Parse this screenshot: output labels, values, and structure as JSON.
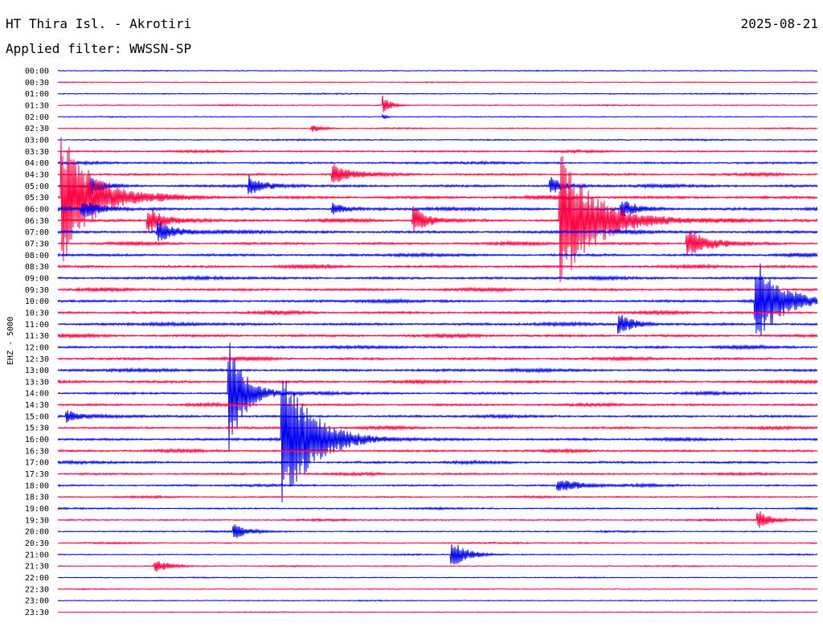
{
  "header": {
    "station": "HT Thira Isl. - Akrotiri",
    "date": "2025-08-21",
    "filter": "Applied filter: WWSSN-SP"
  },
  "chart_data": {
    "type": "line",
    "kind": "helicorder",
    "ylabel": "EHZ - 5000",
    "row_labels": [
      "00:00",
      "00:30",
      "01:00",
      "01:30",
      "02:00",
      "02:30",
      "03:00",
      "03:30",
      "04:00",
      "04:30",
      "05:00",
      "05:30",
      "06:00",
      "06:30",
      "07:00",
      "07:30",
      "08:00",
      "08:30",
      "09:00",
      "09:30",
      "10:00",
      "10:30",
      "11:00",
      "11:30",
      "12:00",
      "12:30",
      "13:00",
      "13:30",
      "14:00",
      "14:30",
      "15:00",
      "15:30",
      "16:00",
      "16:30",
      "17:00",
      "17:30",
      "18:00",
      "18:30",
      "19:00",
      "19:30",
      "20:00",
      "20:30",
      "21:00",
      "21:30",
      "22:00",
      "22:30",
      "23:00",
      "23:30"
    ],
    "row_colors": [
      "#0000ee",
      "#ff0040"
    ],
    "row_minutes": 30,
    "noise_level": [
      0.2,
      0.2,
      0.3,
      0.3,
      0.2,
      0.3,
      0.4,
      0.6,
      0.7,
      0.8,
      0.9,
      1.0,
      1.0,
      1.0,
      1.0,
      0.9,
      0.9,
      0.9,
      0.9,
      0.9,
      0.9,
      0.9,
      0.9,
      0.9,
      0.9,
      0.9,
      0.9,
      0.9,
      0.8,
      0.8,
      0.8,
      0.8,
      0.8,
      0.8,
      0.8,
      0.7,
      0.6,
      0.5,
      0.5,
      0.5,
      0.4,
      0.4,
      0.3,
      0.3,
      0.2,
      0.2,
      0.2,
      0.2
    ],
    "events": [
      {
        "row": 3,
        "minute": 12.8,
        "amplitude": 14,
        "duration": 0.6
      },
      {
        "row": 4,
        "minute": 12.8,
        "amplitude": 5,
        "duration": 0.3
      },
      {
        "row": 5,
        "minute": 10.0,
        "amplitude": 6,
        "duration": 0.8
      },
      {
        "row": 9,
        "minute": 10.8,
        "amplitude": 13,
        "duration": 1.3
      },
      {
        "row": 10,
        "minute": 1.2,
        "amplitude": 12,
        "duration": 1.1
      },
      {
        "row": 10,
        "minute": 7.5,
        "amplitude": 12,
        "duration": 1.0
      },
      {
        "row": 10,
        "minute": 19.4,
        "amplitude": 12,
        "duration": 1.0
      },
      {
        "row": 11,
        "minute": 0.1,
        "amplitude": 80,
        "duration": 2.5
      },
      {
        "row": 12,
        "minute": 0.9,
        "amplitude": 12,
        "duration": 1.4
      },
      {
        "row": 12,
        "minute": 10.8,
        "amplitude": 9,
        "duration": 0.9
      },
      {
        "row": 12,
        "minute": 22.2,
        "amplitude": 12,
        "duration": 1.3
      },
      {
        "row": 13,
        "minute": 3.5,
        "amplitude": 16,
        "duration": 1.5
      },
      {
        "row": 13,
        "minute": 14.0,
        "amplitude": 18,
        "duration": 1.2
      },
      {
        "row": 13,
        "minute": 19.8,
        "amplitude": 80,
        "duration": 3.0
      },
      {
        "row": 14,
        "minute": 3.9,
        "amplitude": 14,
        "duration": 1.4
      },
      {
        "row": 15,
        "minute": 24.8,
        "amplitude": 18,
        "duration": 1.8
      },
      {
        "row": 20,
        "minute": 27.5,
        "amplitude": 55,
        "duration": 2.0
      },
      {
        "row": 22,
        "minute": 22.1,
        "amplitude": 14,
        "duration": 1.2
      },
      {
        "row": 28,
        "minute": 6.7,
        "amplitude": 75,
        "duration": 1.3
      },
      {
        "row": 30,
        "minute": 0.3,
        "amplitude": 8,
        "duration": 1.0
      },
      {
        "row": 32,
        "minute": 8.8,
        "amplitude": 85,
        "duration": 2.6
      },
      {
        "row": 36,
        "minute": 19.7,
        "amplitude": 8,
        "duration": 2.0
      },
      {
        "row": 39,
        "minute": 27.6,
        "amplitude": 12,
        "duration": 1.1
      },
      {
        "row": 40,
        "minute": 6.9,
        "amplitude": 9,
        "duration": 1.2
      },
      {
        "row": 42,
        "minute": 15.5,
        "amplitude": 18,
        "duration": 1.3
      },
      {
        "row": 43,
        "minute": 3.8,
        "amplitude": 8,
        "duration": 1.2
      }
    ]
  }
}
